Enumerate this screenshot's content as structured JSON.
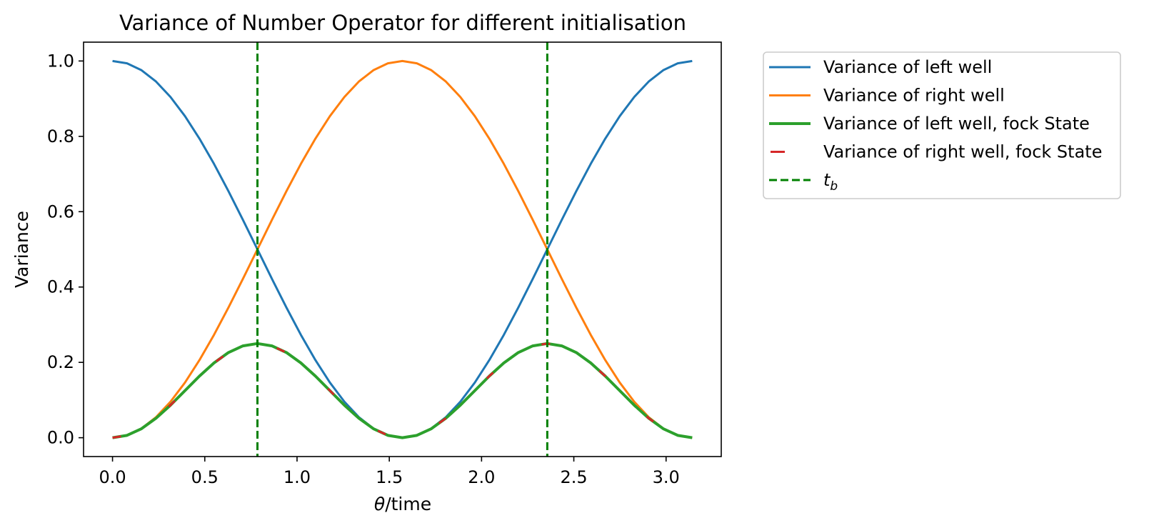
{
  "chart_data": {
    "type": "line",
    "title": "Variance of Number Operator for different initialisation",
    "xlabel_symbol": "θ",
    "xlabel_text": "/time",
    "ylabel": "Variance",
    "xlim": [
      -0.157,
      3.299
    ],
    "ylim": [
      -0.05,
      1.05
    ],
    "xticks": [
      0.0,
      0.5,
      1.0,
      1.5,
      2.0,
      2.5,
      3.0
    ],
    "xtick_labels": [
      "0.0",
      "0.5",
      "1.0",
      "1.5",
      "2.0",
      "2.5",
      "3.0"
    ],
    "yticks": [
      0.0,
      0.2,
      0.4,
      0.6,
      0.8,
      1.0
    ],
    "ytick_labels": [
      "0.0",
      "0.2",
      "0.4",
      "0.6",
      "0.8",
      "1.0"
    ],
    "grid": false,
    "legend_position": "outside-upper-right",
    "x": [
      0.0,
      0.0785,
      0.1571,
      0.2356,
      0.3142,
      0.3927,
      0.4712,
      0.5498,
      0.6283,
      0.7069,
      0.7854,
      0.8639,
      0.9425,
      1.021,
      1.0996,
      1.1781,
      1.2566,
      1.3352,
      1.4137,
      1.4923,
      1.5708,
      1.6493,
      1.7279,
      1.8064,
      1.885,
      1.9635,
      2.042,
      2.1206,
      2.1991,
      2.2777,
      2.3562,
      2.4347,
      2.5133,
      2.5918,
      2.6704,
      2.7489,
      2.8274,
      2.906,
      2.9845,
      3.0631,
      3.1416
    ],
    "series": [
      {
        "name": "Variance of left well",
        "color": "#1f77b4",
        "style": "solid",
        "values": [
          1.0,
          0.9938,
          0.9755,
          0.9455,
          0.9045,
          0.8536,
          0.7939,
          0.727,
          0.6545,
          0.5782,
          0.5,
          0.4218,
          0.3455,
          0.273,
          0.2061,
          0.1464,
          0.0955,
          0.0545,
          0.0245,
          0.0062,
          0.0,
          0.0062,
          0.0245,
          0.0545,
          0.0955,
          0.1464,
          0.2061,
          0.273,
          0.3455,
          0.4218,
          0.5,
          0.5782,
          0.6545,
          0.727,
          0.7939,
          0.8536,
          0.9045,
          0.9455,
          0.9755,
          0.9938,
          1.0
        ]
      },
      {
        "name": "Variance of right well",
        "color": "#ff7f0e",
        "style": "solid",
        "values": [
          0.0,
          0.0062,
          0.0245,
          0.0545,
          0.0955,
          0.1464,
          0.2061,
          0.273,
          0.3455,
          0.4218,
          0.5,
          0.5782,
          0.6545,
          0.727,
          0.7939,
          0.8536,
          0.9045,
          0.9455,
          0.9755,
          0.9938,
          1.0,
          0.9938,
          0.9755,
          0.9455,
          0.9045,
          0.8536,
          0.7939,
          0.727,
          0.6545,
          0.5782,
          0.5,
          0.4218,
          0.3455,
          0.273,
          0.2061,
          0.1464,
          0.0955,
          0.0545,
          0.0245,
          0.0062,
          0.0
        ]
      },
      {
        "name": "Variance of left well, fock State",
        "color": "#2ca02c",
        "style": "solid-thick",
        "values": [
          0.0,
          0.0062,
          0.0239,
          0.0516,
          0.0864,
          0.125,
          0.1636,
          0.1984,
          0.2261,
          0.2438,
          0.25,
          0.2438,
          0.2261,
          0.1984,
          0.1636,
          0.125,
          0.0864,
          0.0516,
          0.0239,
          0.0062,
          0.0,
          0.0062,
          0.0239,
          0.0516,
          0.0864,
          0.125,
          0.1636,
          0.1984,
          0.2261,
          0.2438,
          0.25,
          0.2438,
          0.2261,
          0.1984,
          0.1636,
          0.125,
          0.0864,
          0.0516,
          0.0239,
          0.0062,
          0.0
        ]
      },
      {
        "name": "Variance of right well, fock State",
        "color": "#d62728",
        "style": "dashed-sparse",
        "values": [
          0.0,
          0.0062,
          0.0239,
          0.0516,
          0.0864,
          0.125,
          0.1636,
          0.1984,
          0.2261,
          0.2438,
          0.25,
          0.2438,
          0.2261,
          0.1984,
          0.1636,
          0.125,
          0.0864,
          0.0516,
          0.0239,
          0.0062,
          0.0,
          0.0062,
          0.0239,
          0.0516,
          0.0864,
          0.125,
          0.1636,
          0.1984,
          0.2261,
          0.2438,
          0.25,
          0.2438,
          0.2261,
          0.1984,
          0.1636,
          0.125,
          0.0864,
          0.0516,
          0.0239,
          0.0062,
          0.0
        ]
      }
    ],
    "vlines": {
      "color": "#008000",
      "style": "dashed",
      "x": [
        0.7854,
        2.3562
      ]
    },
    "legend": [
      {
        "label": "Variance of left well",
        "color": "#1f77b4",
        "style": "solid"
      },
      {
        "label": "Variance of right well",
        "color": "#ff7f0e",
        "style": "solid"
      },
      {
        "label": "Variance of left well, fock State",
        "color": "#2ca02c",
        "style": "solid-thick"
      },
      {
        "label": "Variance of right well, fock State",
        "color": "#d62728",
        "style": "dashed-sparse"
      },
      {
        "label_main": "t",
        "label_sub": "b",
        "color": "#008000",
        "style": "dashed"
      }
    ]
  }
}
